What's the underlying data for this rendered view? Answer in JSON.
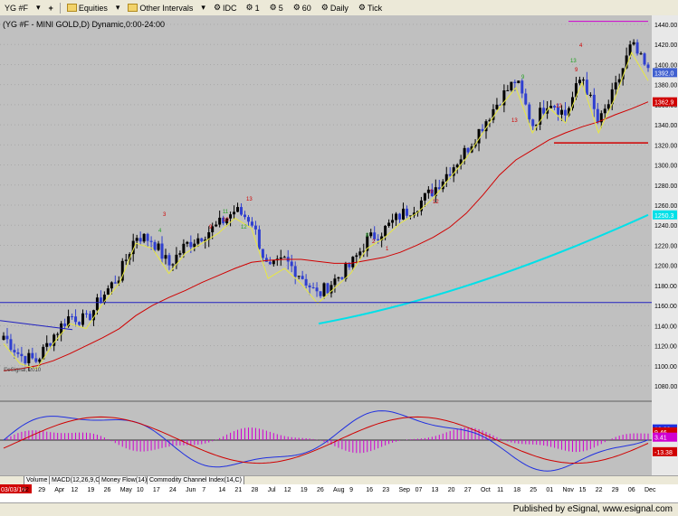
{
  "toolbar": {
    "symbol": "YG #F",
    "equities_label": "Equities",
    "intervals_label": "Other Intervals",
    "source_label": "IDC",
    "interval_buttons": [
      "1",
      "5",
      "60",
      "Daily",
      "Tick"
    ]
  },
  "chart": {
    "title": "(YG #F - MINI GOLD,D) Dynamic,0:00-24:00",
    "watermark": "©eSignal, 2010",
    "price_axis_labels": [
      "1440.00",
      "1420.00",
      "1400.00",
      "1380.00",
      "1360.00",
      "1340.00",
      "1320.00",
      "1300.00",
      "1280.00",
      "1260.00",
      "1240.00",
      "1220.00",
      "1200.00",
      "1180.00",
      "1160.00",
      "1140.00",
      "1120.00",
      "1100.00",
      "1080.00"
    ],
    "last_price_label": "1392.0",
    "ma_red_label": "1362.9",
    "ma_cyan_label": "1250.3",
    "macd_labels": [
      "12.88",
      "9.46",
      "3.41",
      "-13.38"
    ],
    "date_labels": [
      "03/03/10",
      "22",
      "29",
      "Apr",
      "12",
      "19",
      "26",
      "May",
      "10",
      "17",
      "24",
      "Jun",
      "7",
      "14",
      "21",
      "28",
      "Jul",
      "12",
      "19",
      "26",
      "Aug",
      "9",
      "16",
      "23",
      "Sep",
      "07",
      "13",
      "20",
      "27",
      "Oct",
      "11",
      "18",
      "25",
      "01",
      "Nov",
      "15",
      "22",
      "29",
      "06",
      "Dec"
    ],
    "setup_counts": [
      "4",
      "3",
      "9",
      "11",
      "13",
      "10",
      "12",
      "9",
      "12",
      "9",
      "13",
      "12",
      "13",
      "4",
      "9",
      "8",
      "2",
      "1"
    ],
    "colors": {
      "background": "#c0c0c0",
      "up_bar": "#000000",
      "down_bar": "#2f3fd0",
      "ma_red": "#d00000",
      "ma_yellow": "#e8e840",
      "ma_cyan": "#00e0e8",
      "support_line": "#2020c0",
      "resistance_magenta": "#d000d0",
      "count_red": "#d00000",
      "count_green": "#20a020"
    }
  },
  "tabs": [
    "Volume",
    "MACD(12,26,9,C)",
    "Money Flow(14)",
    "Commodity Channel Index(14,C)"
  ],
  "footer": {
    "publisher": "Published by eSignal, www.esignal.com"
  },
  "chart_data": {
    "type": "candlestick",
    "title": "(YG #F - MINI GOLD,D) Dynamic,0:00-24:00",
    "x": [
      "03/03/10",
      "Mar 22",
      "Mar 29",
      "Apr",
      "Apr 12",
      "Apr 19",
      "Apr 26",
      "May",
      "May 10",
      "May 17",
      "May 24",
      "Jun",
      "Jun 7",
      "Jun 14",
      "Jun 21",
      "Jun 28",
      "Jul",
      "Jul 12",
      "Jul 19",
      "Jul 26",
      "Aug",
      "Aug 9",
      "Aug 16",
      "Aug 23",
      "Sep",
      "Sep 07",
      "Sep 13",
      "Sep 20",
      "Sep 27",
      "Oct",
      "Oct 11",
      "Oct 18",
      "Oct 25",
      "Nov 01",
      "Nov",
      "Nov 15",
      "Nov 22",
      "Nov 29",
      "Dec 06",
      "Dec"
    ],
    "series": [
      {
        "name": "price",
        "values": [
          1130,
          1110,
          1105,
          1130,
          1150,
          1145,
          1170,
          1190,
          1230,
          1225,
          1200,
          1220,
          1230,
          1240,
          1255,
          1245,
          1195,
          1205,
          1190,
          1170,
          1185,
          1200,
          1225,
          1235,
          1250,
          1260,
          1275,
          1295,
          1315,
          1340,
          1365,
          1385,
          1340,
          1365,
          1350,
          1390,
          1340,
          1375,
          1420,
          1392
        ]
      },
      {
        "name": "red moving average",
        "values": [
          1095,
          1097,
          1100,
          1105,
          1112,
          1120,
          1128,
          1137,
          1150,
          1160,
          1168,
          1175,
          1183,
          1190,
          1197,
          1203,
          1205,
          1206,
          1206,
          1204,
          1202,
          1202,
          1205,
          1208,
          1213,
          1220,
          1228,
          1238,
          1252,
          1270,
          1290,
          1305,
          1315,
          1325,
          1332,
          1338,
          1343,
          1350,
          1356,
          1362.9
        ]
      }
    ],
    "ylim": [
      1070,
      1450
    ],
    "annotations": {
      "last_price": 1392.0,
      "red_ma_last": 1362.9,
      "cyan_ma_last": 1250.3,
      "support_line": 1163,
      "resistance_high": 1443,
      "breakout_low": 1322
    },
    "macd": {
      "labels": [
        12.88,
        9.46,
        3.41,
        -13.38
      ]
    }
  }
}
